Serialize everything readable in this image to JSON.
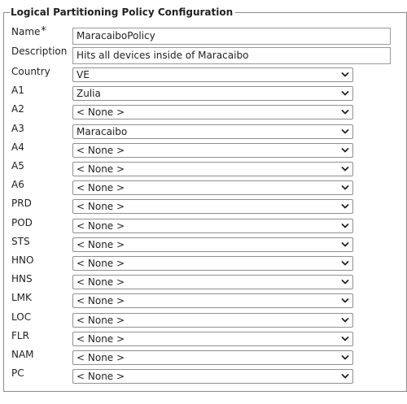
{
  "legend": "Logical Partitioning Policy Configuration",
  "name": {
    "label": "Name",
    "required_mark": "*",
    "value": "MaracaiboPolicy"
  },
  "description": {
    "label": "Description",
    "value": "Hits all devices inside of Maracaibo"
  },
  "selects": [
    {
      "label": "Country",
      "value": "VE"
    },
    {
      "label": "A1",
      "value": "Zulia"
    },
    {
      "label": "A2",
      "value": "< None >"
    },
    {
      "label": "A3",
      "value": "Maracaibo"
    },
    {
      "label": "A4",
      "value": "< None >"
    },
    {
      "label": "A5",
      "value": "< None >"
    },
    {
      "label": "A6",
      "value": "< None >"
    },
    {
      "label": "PRD",
      "value": "< None >"
    },
    {
      "label": "POD",
      "value": "< None >"
    },
    {
      "label": "STS",
      "value": "< None >"
    },
    {
      "label": "HNO",
      "value": "< None >"
    },
    {
      "label": "HNS",
      "value": "< None >"
    },
    {
      "label": "LMK",
      "value": "< None >"
    },
    {
      "label": "LOC",
      "value": "< None >"
    },
    {
      "label": "FLR",
      "value": "< None >"
    },
    {
      "label": "NAM",
      "value": "< None >"
    },
    {
      "label": "PC",
      "value": "< None >"
    }
  ],
  "icons": {
    "dropdown": "chevron-down-icon"
  }
}
